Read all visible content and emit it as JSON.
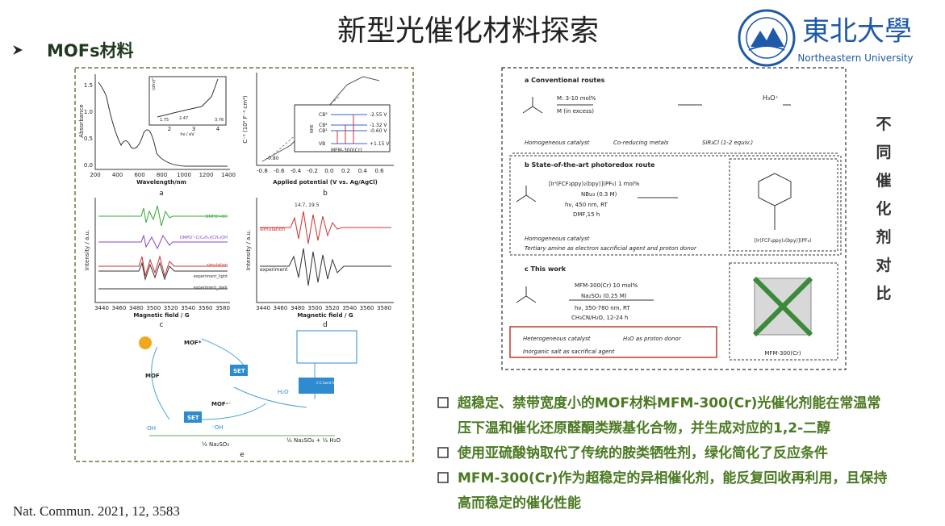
{
  "header": {
    "title": "新型光催化材料探索",
    "section": "MOFs材料",
    "logo_cn": "東北大學",
    "logo_en": "Northeastern University"
  },
  "left_figure": {
    "a": {
      "label": "a",
      "x_label": "Wavelength/nm",
      "y_label": "Absorbance",
      "x_ticks": [
        "200",
        "400",
        "600",
        "800",
        "1000",
        "1200",
        "1400"
      ],
      "y_ticks": [
        "1.5",
        "1.0",
        "0.5",
        "0.0"
      ],
      "inset_y_label": "(αhν)²",
      "inset_x_label": "hν / eV",
      "inset_notes": [
        "1.75",
        "2.47",
        "3.76"
      ],
      "inset_x_ticks": [
        "2",
        "3",
        "4"
      ]
    },
    "b": {
      "label": "b",
      "x_label": "Applied potential (V vs. Ag/AgCl)",
      "y_label": "C⁻² (10⁹ F⁻² cm⁴)",
      "x_ticks": [
        "-0.8",
        "-0.6",
        "-0.4",
        "-0.2",
        "0.0",
        "0.2",
        "0.4",
        "0.6"
      ],
      "intercept": "-0.80",
      "levels": [
        "CB³",
        "CB²",
        "CB¹",
        "VB"
      ],
      "potentials": [
        "-2.55 V",
        "-1.32 V",
        "-0.60 V",
        "+1.15 V"
      ],
      "reference": "NHE",
      "material": "MFM-300(Cr)"
    },
    "c": {
      "label": "c",
      "x_label": "Magnetic field / G",
      "y_label": "Intensity / a.u.",
      "x_ticks": [
        "3440",
        "3460",
        "3480",
        "3500",
        "3520",
        "3540",
        "3560",
        "3580"
      ],
      "traces": [
        "DMPO⁺-OH",
        "DMPO⁺-C(C₆H₅)(CH₃)OH",
        "simulation",
        "experiment_light",
        "experiment_dark"
      ]
    },
    "d": {
      "label": "d",
      "x_label": "Magnetic field / G",
      "y_label": "Intensity / a.u.",
      "x_ticks": [
        "3440",
        "3460",
        "3480",
        "3500",
        "3520",
        "3540",
        "3560",
        "3580"
      ],
      "splitting": "14.7, 19.5",
      "traces": [
        "simulation",
        "experiment"
      ]
    },
    "e": {
      "label": "e",
      "nodes": [
        "MOF*",
        "MOF",
        "MOF·⁻",
        "SET",
        "SET",
        "C-C bond formation",
        "H₂O",
        "·OH",
        "⁻OH"
      ],
      "reagent": "½ Na₂SO₃",
      "products": "½ Na₂SO₄ + ½ H₂O"
    }
  },
  "right_figure": {
    "a": {
      "heading": "a  Conventional routes",
      "conditions": [
        "M: 3-10 mol%",
        "M (in excess)"
      ],
      "acid": "H₃O⁺",
      "notes": [
        "Homogeneous catalyst",
        "Co-reducing metals",
        "SiR₃Cl (1-2 equiv.)"
      ]
    },
    "b": {
      "heading": "b  State-of-the-art photoredox route",
      "conditions": [
        "[Irᴵ(FCF₃ppy)₂(bpy)](PF₆) 1 mol%",
        "NBu₃ (0.3 M)",
        "hν, 450 nm, RT",
        "DMF,15 h"
      ],
      "catalyst": "[Ir(FCF₃ppy)₂(bpy)](PF₆)",
      "notes": [
        "Homogeneous catalyst",
        "Tertiary amine as electron sacrificial agent and proton donor"
      ]
    },
    "c": {
      "heading": "c  This work",
      "conditions": [
        "MFM-300(Cr) 10 mol%",
        "Na₂SO₃ (0.25 M)",
        "hν, 350-780 nm, RT",
        "CH₃CN/H₂O, 12-24 h"
      ],
      "notes": [
        "Heterogeneous catalyst",
        "H₂O as proton donor",
        "Inorganic salt as sacrifical agent"
      ],
      "material": "MFM-300(Cr)"
    }
  },
  "side_label": [
    "不",
    "同",
    "催",
    "化",
    "剂",
    "对",
    "比"
  ],
  "bullets": [
    [
      "超稳定、禁带宽度小的MOF材料MFM-300(Cr)光催化剂能在常温常",
      "压下温和催化还原醛酮类羰基化合物，并生成对应的1,2-二醇"
    ],
    [
      "使用亚硫酸钠取代了传统的胺类牺牲剂，绿化简化了反应条件"
    ],
    [
      "MFM-300(Cr)作为超稳定的异相催化剂，能反复回收再利用，且保持",
      "高而稳定的催化性能"
    ]
  ],
  "citation": "Nat. Commun. 2021, 12, 3583"
}
